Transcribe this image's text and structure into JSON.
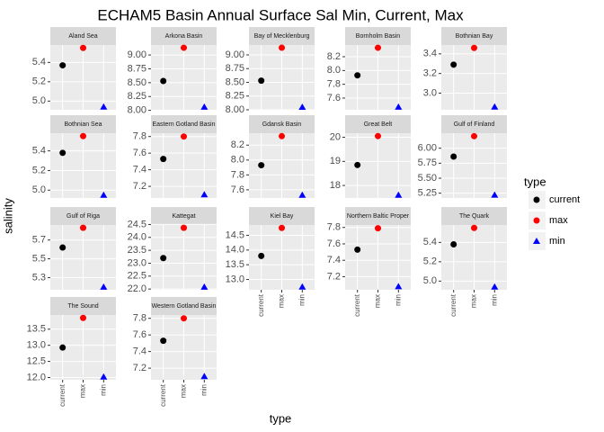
{
  "title": "ECHAM5 Basin Annual Surface Sal Min, Current, Max",
  "x_label": "type",
  "y_label": "salinity",
  "legend_title": "type",
  "categories": [
    "current",
    "max",
    "min"
  ],
  "colors": [
    "#000000",
    "#ff0000",
    "#0000ff"
  ],
  "shapes": [
    "circle",
    "circle",
    "triangle"
  ],
  "chart_data": [
    {
      "type": "scatter",
      "title": "Aland Sea",
      "values": [
        5.37,
        5.55,
        4.94
      ],
      "ylim": [
        4.91,
        5.58
      ],
      "yticks": [
        {
          "value": 5.0,
          "label": "5.0"
        },
        5.2,
        5.4
      ]
    },
    {
      "type": "scatter",
      "title": "Arkona Basin",
      "values": [
        8.53,
        9.13,
        8.06
      ],
      "ylim": [
        8.01,
        9.18
      ],
      "yticks": [
        {
          "value": 8.0,
          "label": "8.00"
        },
        8.25,
        {
          "value": 8.5,
          "label": "8.50"
        },
        8.75,
        {
          "value": 9.0,
          "label": "9.00"
        }
      ]
    },
    {
      "type": "scatter",
      "title": "Bay of Mecklenburg",
      "values": [
        8.53,
        9.13,
        8.05
      ],
      "ylim": [
        8.0,
        9.18
      ],
      "yticks": [
        {
          "value": 8.0,
          "label": "8.00"
        },
        8.25,
        {
          "value": 8.5,
          "label": "8.50"
        },
        8.75,
        {
          "value": 9.0,
          "label": "9.00"
        }
      ]
    },
    {
      "type": "scatter",
      "title": "Bornholm Basin",
      "values": [
        7.93,
        8.33,
        7.47
      ],
      "ylim": [
        7.43,
        8.37
      ],
      "yticks": [
        7.6,
        7.8,
        {
          "value": 8.0,
          "label": "8.0"
        },
        8.2
      ]
    },
    {
      "type": "scatter",
      "title": "Bothnian Bay",
      "values": [
        3.29,
        3.46,
        2.86
      ],
      "ylim": [
        2.83,
        3.49
      ],
      "yticks": [
        {
          "value": 3.0,
          "label": "3.0"
        },
        3.2,
        3.4
      ]
    },
    {
      "type": "scatter",
      "title": "Bothnian Sea",
      "values": [
        5.38,
        5.55,
        4.95
      ],
      "ylim": [
        4.92,
        5.58
      ],
      "yticks": [
        {
          "value": 5.0,
          "label": "5.0"
        },
        5.2,
        5.4
      ]
    },
    {
      "type": "scatter",
      "title": "Eastern Gotland Basin",
      "values": [
        7.53,
        7.8,
        7.1
      ],
      "ylim": [
        7.06,
        7.84
      ],
      "yticks": [
        7.2,
        7.4,
        7.6,
        7.8
      ]
    },
    {
      "type": "scatter",
      "title": "Gdansk Basin",
      "values": [
        7.93,
        8.32,
        7.53
      ],
      "ylim": [
        7.49,
        8.36
      ],
      "yticks": [
        7.6,
        7.8,
        {
          "value": 8.0,
          "label": "8.0"
        },
        8.2
      ]
    },
    {
      "type": "scatter",
      "title": "Great Belt",
      "values": [
        18.85,
        20.05,
        17.6
      ],
      "ylim": [
        17.48,
        20.17
      ],
      "yticks": [
        18,
        19,
        20
      ]
    },
    {
      "type": "scatter",
      "title": "Gulf of Finland",
      "values": [
        5.86,
        6.2,
        5.22
      ],
      "ylim": [
        5.17,
        6.25
      ],
      "yticks": [
        5.25,
        {
          "value": 5.5,
          "label": "5.50"
        },
        5.75,
        {
          "value": 6.0,
          "label": "6.00"
        }
      ]
    },
    {
      "type": "scatter",
      "title": "Gulf of Riga",
      "values": [
        5.62,
        5.83,
        5.2
      ],
      "ylim": [
        5.17,
        5.86
      ],
      "yticks": [
        5.3,
        5.5,
        5.7
      ]
    },
    {
      "type": "scatter",
      "title": "Kattegat",
      "values": [
        23.2,
        24.37,
        22.08
      ],
      "ylim": [
        21.97,
        24.48
      ],
      "yticks": [
        {
          "value": 22.0,
          "label": "22.0"
        },
        22.5,
        {
          "value": 23.0,
          "label": "23.0"
        },
        23.5,
        {
          "value": 24.0,
          "label": "24.0"
        },
        24.5
      ]
    },
    {
      "type": "scatter",
      "title": "Kiel Bay",
      "values": [
        13.8,
        14.75,
        12.75
      ],
      "ylim": [
        12.65,
        14.85
      ],
      "yticks": [
        {
          "value": 13.0,
          "label": "13.0"
        },
        13.5,
        {
          "value": 14.0,
          "label": "14.0"
        },
        14.5
      ]
    },
    {
      "type": "scatter",
      "title": "Northern Baltic Proper",
      "values": [
        7.53,
        7.79,
        7.08
      ],
      "ylim": [
        7.04,
        7.83
      ],
      "yticks": [
        7.2,
        7.4,
        7.6,
        7.8
      ]
    },
    {
      "type": "scatter",
      "title": "The Quark",
      "values": [
        5.38,
        5.55,
        4.94
      ],
      "ylim": [
        4.91,
        5.58
      ],
      "yticks": [
        {
          "value": 5.0,
          "label": "5.0"
        },
        5.2,
        5.4
      ]
    },
    {
      "type": "scatter",
      "title": "The Sound",
      "values": [
        12.93,
        13.85,
        12.02
      ],
      "ylim": [
        11.93,
        13.94
      ],
      "yticks": [
        {
          "value": 12.0,
          "label": "12.0"
        },
        12.5,
        {
          "value": 13.0,
          "label": "13.0"
        },
        13.5
      ]
    },
    {
      "type": "scatter",
      "title": "Western Gotland Basin",
      "values": [
        7.53,
        7.8,
        7.1
      ],
      "ylim": [
        7.06,
        7.84
      ],
      "yticks": [
        7.2,
        7.4,
        7.6,
        7.8
      ]
    }
  ]
}
